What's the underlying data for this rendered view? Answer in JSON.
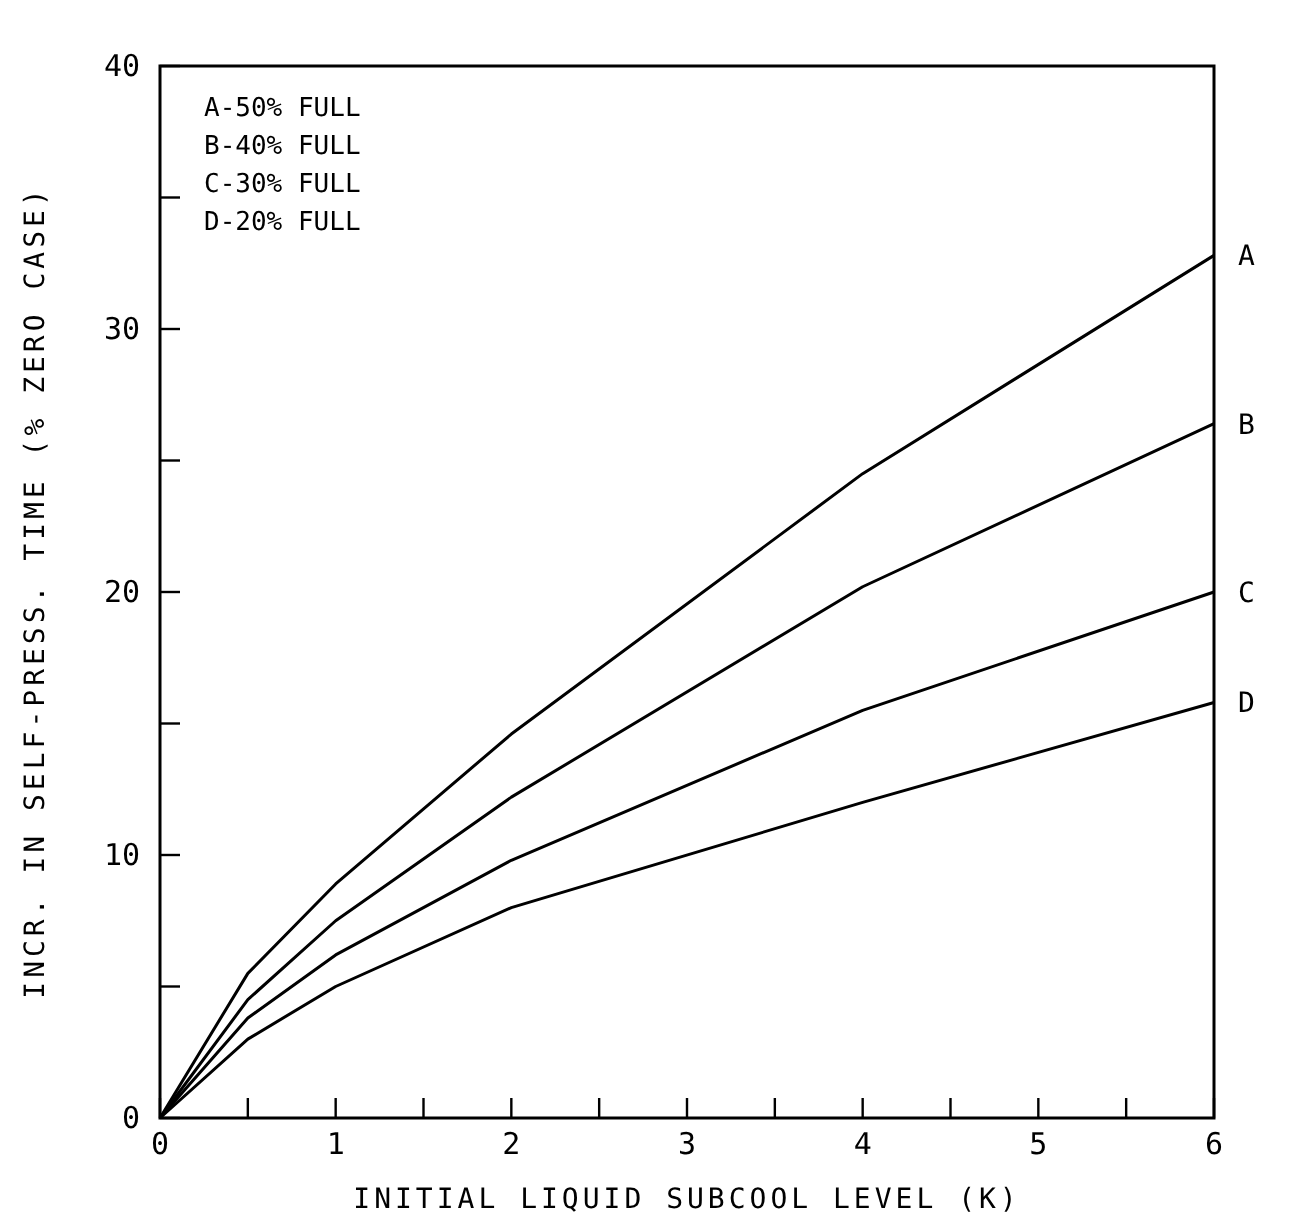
{
  "chart_data": {
    "type": "line",
    "xlabel": "INITIAL LIQUID SUBCOOL LEVEL (K)",
    "ylabel": "INCR. IN SELF-PRESS. TIME (% ZERO CASE)",
    "x": [
      0,
      0.5,
      1,
      2,
      4,
      6
    ],
    "series": [
      {
        "name": "A",
        "color": "#000000",
        "values": [
          0,
          5.5,
          8.9,
          14.6,
          24.5,
          32.8
        ]
      },
      {
        "name": "B",
        "color": "#000000",
        "values": [
          0,
          4.5,
          7.5,
          12.2,
          20.2,
          26.4
        ]
      },
      {
        "name": "C",
        "color": "#000000",
        "values": [
          0,
          3.8,
          6.2,
          9.8,
          15.5,
          20.0
        ]
      },
      {
        "name": "D",
        "color": "#000000",
        "values": [
          0,
          3.0,
          5.0,
          8.0,
          12.0,
          15.8
        ]
      }
    ],
    "xlim": [
      0,
      6
    ],
    "ylim": [
      0,
      40
    ],
    "xticks": [
      0,
      {
        "value": 0.5,
        "label": null
      },
      1,
      {
        "value": 1.5,
        "label": null
      },
      2,
      {
        "value": 2.5,
        "label": null
      },
      3,
      {
        "value": 3.5,
        "label": null
      },
      4,
      {
        "value": 4.5,
        "label": null
      },
      5,
      {
        "value": 5.5,
        "label": null
      },
      6
    ],
    "yticks": [
      0,
      {
        "value": 5,
        "label": null
      },
      10,
      {
        "value": 15,
        "label": null
      },
      20,
      {
        "value": 25,
        "label": null
      },
      30,
      {
        "value": 35,
        "label": null
      },
      40
    ],
    "annotations": [
      "A-50% FULL",
      "B-40% FULL",
      "C-30% FULL",
      "D-20% FULL"
    ],
    "marker": "none",
    "line_style": "solid",
    "grid": false
  }
}
